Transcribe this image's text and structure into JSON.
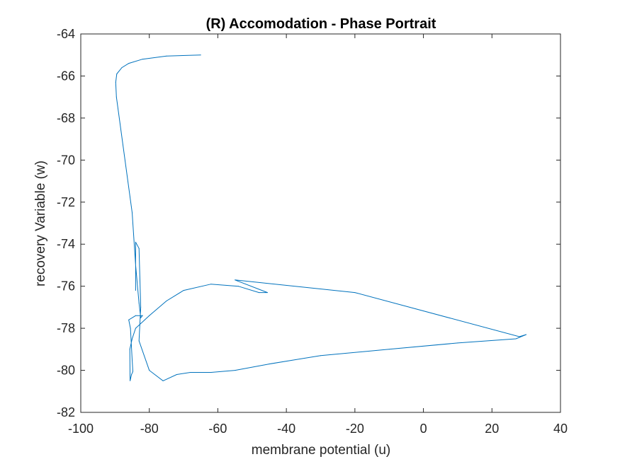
{
  "chart_data": {
    "type": "line",
    "title": "(R) Accomodation - Phase Portrait",
    "xlabel": "membrane potential (u)",
    "ylabel": "recovery Variable (w)",
    "xlim": [
      -100,
      40
    ],
    "ylim": [
      -82,
      -64
    ],
    "xticks": [
      -100,
      -80,
      -60,
      -40,
      -20,
      0,
      20,
      40
    ],
    "yticks": [
      -82,
      -80,
      -78,
      -76,
      -74,
      -72,
      -70,
      -68,
      -66,
      -64
    ],
    "grid": false,
    "legend": "none",
    "line_color": "#0072BD",
    "series": [
      {
        "x": [
          -65,
          -75,
          -82,
          -86,
          -88,
          -89.5,
          -89.8,
          -89.6,
          -85,
          -84,
          -83,
          -82.5,
          -82,
          -84,
          -86,
          -85.5,
          -85,
          -84.8,
          -84.9,
          -85.2,
          -85.6,
          -85.7,
          -85,
          -84,
          -80,
          -75,
          -70,
          -62,
          -54,
          -48,
          -45.5,
          -55,
          -20,
          28,
          30,
          27,
          10,
          -10,
          -30,
          -45,
          -55,
          -62,
          -68,
          -72,
          -76,
          -80,
          -83,
          -82.5,
          -83,
          -84,
          -84
        ],
        "y": [
          -65,
          -65.05,
          -65.2,
          -65.4,
          -65.6,
          -65.9,
          -66.3,
          -67,
          -72.5,
          -75,
          -76.8,
          -77.5,
          -77.4,
          -77.4,
          -77.6,
          -78,
          -79.5,
          -80.05,
          -80.1,
          -80.2,
          -80.5,
          -79.0,
          -78.5,
          -78.0,
          -77.4,
          -76.7,
          -76.2,
          -75.9,
          -76.0,
          -76.3,
          -76.3,
          -75.7,
          -76.3,
          -78.4,
          -78.3,
          -78.5,
          -78.7,
          -79.0,
          -79.3,
          -79.7,
          -80.0,
          -80.1,
          -80.1,
          -80.2,
          -80.5,
          -80.0,
          -78.6,
          -77.0,
          -74.2,
          -73.9,
          -76.2
        ]
      }
    ]
  }
}
